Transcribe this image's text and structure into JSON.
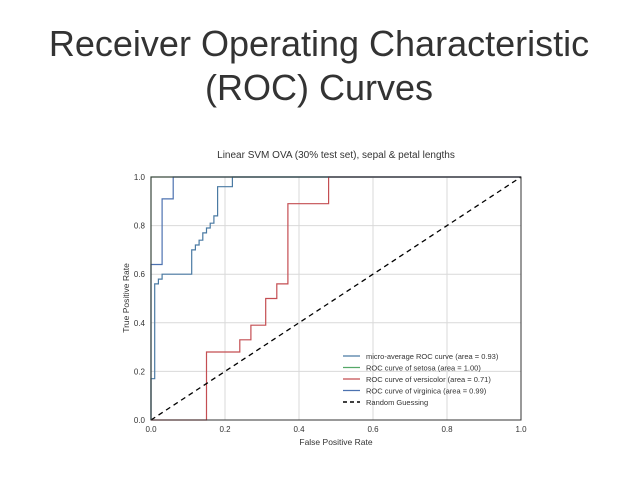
{
  "slide": {
    "title_line1": "Receiver Operating Characteristic",
    "title_line2": "(ROC) Curves"
  },
  "chart_data": {
    "type": "line",
    "title": "Linear SVM OVA (30% test set), sepal & petal lengths",
    "xlabel": "False Positive Rate",
    "ylabel": "True Positive Rate",
    "xlim": [
      0.0,
      1.0
    ],
    "ylim": [
      0.0,
      1.0
    ],
    "xticks": [
      "0.0",
      "0.2",
      "0.4",
      "0.6",
      "0.8",
      "1.0"
    ],
    "yticks": [
      "0.0",
      "0.2",
      "0.4",
      "0.6",
      "0.8",
      "1.0"
    ],
    "grid": true,
    "legend_position": "lower-right",
    "series": [
      {
        "name": "micro-average ROC curve (area = 0.93)",
        "color": "#4a7aa3",
        "dash": false,
        "x": [
          0.0,
          0.0,
          0.01,
          0.01,
          0.02,
          0.02,
          0.03,
          0.03,
          0.06,
          0.06,
          0.11,
          0.11,
          0.12,
          0.12,
          0.13,
          0.13,
          0.14,
          0.14,
          0.15,
          0.15,
          0.16,
          0.16,
          0.17,
          0.17,
          0.18,
          0.18,
          0.2,
          0.2,
          0.22,
          0.22,
          1.0
        ],
        "y": [
          0.0,
          0.17,
          0.17,
          0.56,
          0.56,
          0.58,
          0.58,
          0.6,
          0.6,
          0.6,
          0.6,
          0.7,
          0.7,
          0.72,
          0.72,
          0.74,
          0.74,
          0.77,
          0.77,
          0.79,
          0.79,
          0.81,
          0.81,
          0.84,
          0.84,
          0.96,
          0.96,
          0.96,
          0.96,
          1.0,
          1.0
        ]
      },
      {
        "name": "ROC curve of setosa (area = 1.00)",
        "color": "#55a868",
        "dash": false,
        "x": [
          0.0,
          0.0,
          1.0
        ],
        "y": [
          0.0,
          1.0,
          1.0
        ]
      },
      {
        "name": "ROC curve of versicolor (area = 0.71)",
        "color": "#c44e52",
        "dash": false,
        "x": [
          0.0,
          0.15,
          0.15,
          0.24,
          0.24,
          0.27,
          0.27,
          0.31,
          0.31,
          0.34,
          0.34,
          0.37,
          0.37,
          0.48,
          0.48,
          1.0
        ],
        "y": [
          0.0,
          0.0,
          0.28,
          0.28,
          0.33,
          0.33,
          0.39,
          0.39,
          0.5,
          0.5,
          0.56,
          0.56,
          0.89,
          0.89,
          1.0,
          1.0
        ]
      },
      {
        "name": "ROC curve of virginica (area = 0.99)",
        "color": "#4c72b0",
        "dash": false,
        "x": [
          0.0,
          0.0,
          0.03,
          0.03,
          0.06,
          0.06,
          1.0
        ],
        "y": [
          0.0,
          0.64,
          0.64,
          0.91,
          0.91,
          1.0,
          1.0
        ]
      },
      {
        "name": "Random Guessing",
        "color": "#000000",
        "dash": true,
        "x": [
          0.0,
          1.0
        ],
        "y": [
          0.0,
          1.0
        ]
      }
    ]
  }
}
